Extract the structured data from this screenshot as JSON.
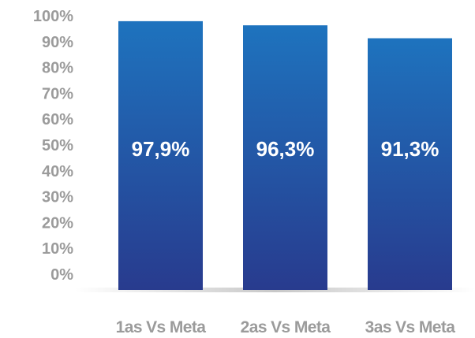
{
  "chart_data": {
    "type": "bar",
    "title": "",
    "xlabel": "",
    "ylabel": "",
    "categories": [
      "1as Vs Meta",
      "2as Vs Meta",
      "3as Vs Meta"
    ],
    "values": [
      97.9,
      96.3,
      91.3
    ],
    "data_labels": [
      "97,9%",
      "96,3%",
      "91,3%"
    ],
    "ylim": [
      0,
      100
    ],
    "yticks": [
      "0%",
      "10%",
      "20%",
      "30%",
      "40%",
      "50%",
      "60%",
      "70%",
      "80%",
      "90%",
      "100%"
    ],
    "grid": false,
    "legend": "none",
    "colors": {
      "bar_top": "#1e73be",
      "bar_bottom": "#283b8e",
      "text": "#9b9b9b",
      "value_label": "#ffffff"
    }
  }
}
